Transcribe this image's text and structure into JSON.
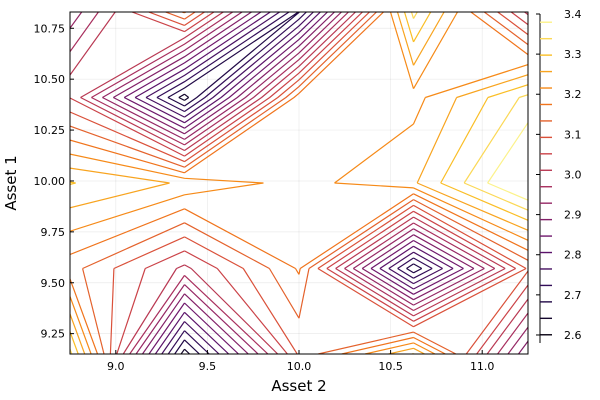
{
  "chart_data": {
    "type": "contour",
    "title": "",
    "xlabel": "Asset 2",
    "ylabel": "Asset 1",
    "xlim": [
      8.75,
      11.25
    ],
    "ylim": [
      9.15,
      10.83
    ],
    "xticks": [
      "9.0",
      "9.5",
      "10.0",
      "10.5",
      "11.0"
    ],
    "yticks": [
      "9.25",
      "9.50",
      "9.75",
      "10.00",
      "10.25",
      "10.50",
      "10.75"
    ],
    "grid": true,
    "colormap": "inferno",
    "colorbar": {
      "range": [
        2.58,
        3.4
      ],
      "ticks": [
        "2.6",
        "2.7",
        "2.8",
        "2.9",
        "3.0",
        "3.1",
        "3.2",
        "3.3",
        "3.4"
      ],
      "levels": 20
    },
    "z_grid": {
      "x": [
        8.75,
        9.375,
        10.0,
        10.625,
        11.25
      ],
      "y": [
        9.15,
        9.57,
        9.99,
        10.41,
        10.83
      ],
      "z": [
        [
          3.35,
          2.62,
          3.1,
          3.3,
          2.85
        ],
        [
          3.15,
          3.0,
          3.18,
          2.65,
          3.1
        ],
        [
          3.3,
          3.25,
          3.2,
          3.25,
          3.45
        ],
        [
          3.05,
          2.62,
          3.2,
          3.2,
          3.35
        ],
        [
          2.9,
          3.18,
          2.68,
          3.35,
          3.0
        ]
      ]
    }
  }
}
